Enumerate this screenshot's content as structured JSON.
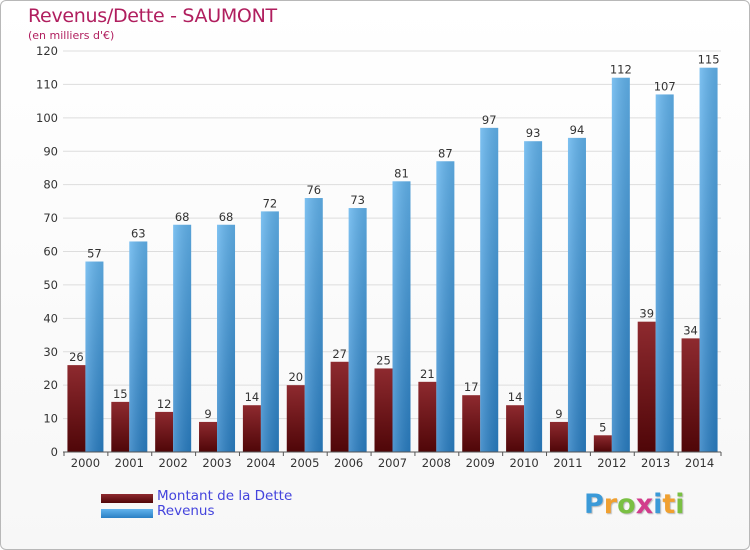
{
  "title": "Revenus/Dette - SAUMONT",
  "subtitle": "(en milliers d'€)",
  "logo": {
    "letters": [
      "P",
      "r",
      "o",
      "x",
      "i",
      "t",
      "i"
    ],
    "colors": [
      "#3b9ad8",
      "#f0a030",
      "#7ac043",
      "#d23c8c",
      "#3b9ad8",
      "#f0a030",
      "#7ac043"
    ]
  },
  "colors": {
    "debt_top": "#8e2a2f",
    "debt_bottom": "#4f0608",
    "revenue_top": "#62b4ee",
    "revenue_bottom": "#2a7fc4",
    "axis_text": "#333333",
    "grid": "#dddddd"
  },
  "chart_data": {
    "type": "bar",
    "title": "Revenus/Dette - SAUMONT",
    "subtitle": "(en milliers d'€)",
    "categories": [
      "2000",
      "2001",
      "2002",
      "2003",
      "2004",
      "2005",
      "2006",
      "2007",
      "2008",
      "2009",
      "2010",
      "2011",
      "2012",
      "2013",
      "2014"
    ],
    "series": [
      {
        "name": "Montant de la Dette",
        "values": [
          26,
          15,
          12,
          9,
          14,
          20,
          27,
          25,
          21,
          17,
          14,
          9,
          5,
          39,
          34
        ]
      },
      {
        "name": "Revenus",
        "values": [
          57,
          63,
          68,
          68,
          72,
          76,
          73,
          81,
          87,
          97,
          93,
          94,
          112,
          107,
          115
        ]
      }
    ],
    "yticks": [
      0,
      10,
      20,
      30,
      40,
      50,
      60,
      70,
      80,
      90,
      100,
      110,
      120
    ],
    "ylim": [
      0,
      120
    ],
    "grid": true,
    "legend": "bottom-left"
  }
}
